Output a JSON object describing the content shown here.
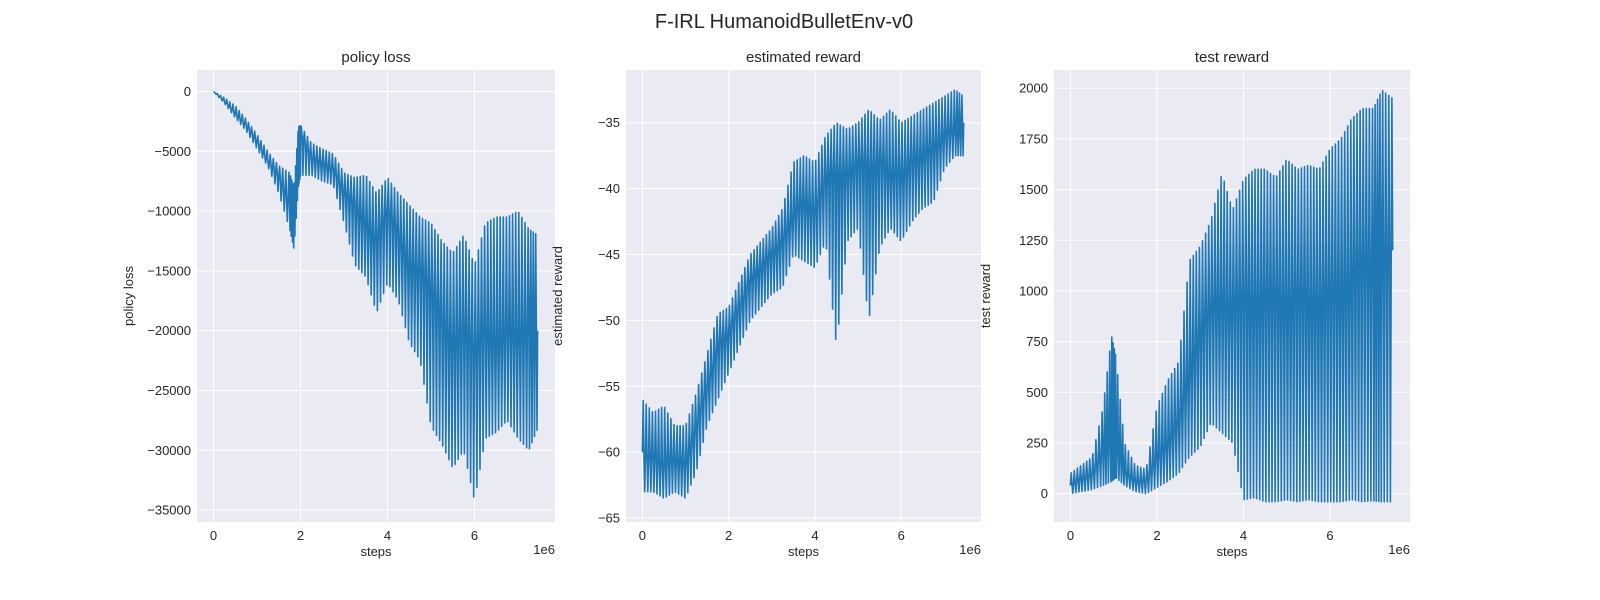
{
  "figure": {
    "suptitle": "F-IRL HumanoidBulletEnv-v0"
  },
  "style": {
    "line_color": "#1f77b4",
    "axes_bg": "#eaeaf2",
    "grid_color": "#ffffff",
    "text_color": "#262626"
  },
  "chart_data": [
    {
      "type": "line",
      "title": "policy loss",
      "xlabel": "steps",
      "ylabel": "policy loss",
      "x_offset_label": "1e6",
      "xlim": [
        -0.38,
        7.85
      ],
      "ylim": [
        -36000,
        1800
      ],
      "xticks": [
        0,
        2,
        4,
        6
      ],
      "xtick_labels": [
        "0",
        "2",
        "4",
        "6"
      ],
      "yticks": [
        0,
        -5000,
        -10000,
        -15000,
        -20000,
        -25000,
        -30000,
        -35000
      ],
      "ytick_labels": [
        "0",
        "−5000",
        "−10000",
        "−15000",
        "−20000",
        "−25000",
        "−30000",
        "−35000"
      ],
      "grid": true,
      "series": [
        {
          "x_scale": "1e6",
          "x": [
            0,
            0.25,
            0.5,
            0.75,
            1.0,
            1.25,
            1.5,
            1.75,
            1.85,
            1.95,
            2.0,
            2.25,
            2.5,
            2.75,
            3.0,
            3.25,
            3.5,
            3.75,
            4.0,
            4.25,
            4.5,
            4.75,
            5.0,
            5.25,
            5.5,
            5.75,
            6.0,
            6.25,
            6.5,
            6.75,
            7.0,
            7.25,
            7.45
          ],
          "y": [
            0,
            -800,
            -1800,
            -2800,
            -4200,
            -5800,
            -7000,
            -9500,
            -11000,
            -5000,
            -3500,
            -5500,
            -6000,
            -6500,
            -8500,
            -9500,
            -11000,
            -12500,
            -10000,
            -12000,
            -14500,
            -15000,
            -17000,
            -19000,
            -21000,
            -20000,
            -22000,
            -20000,
            -21000,
            -20000,
            -21000,
            -20000,
            -20000
          ],
          "y_high": [
            0,
            -500,
            -1200,
            -2300,
            -3600,
            -5000,
            -6200,
            -6800,
            -8000,
            -3000,
            -2800,
            -4300,
            -4800,
            -5200,
            -6800,
            -7200,
            -7000,
            -8500,
            -7200,
            -8500,
            -9500,
            -10500,
            -11000,
            -12500,
            -13500,
            -12000,
            -14500,
            -11000,
            -10500,
            -10500,
            -10000,
            -11500,
            -12000
          ],
          "y_low": [
            0,
            -1000,
            -2200,
            -3300,
            -4800,
            -6300,
            -8500,
            -11500,
            -13200,
            -8000,
            -7000,
            -7000,
            -7500,
            -7800,
            -11000,
            -14500,
            -15500,
            -18500,
            -16000,
            -17500,
            -21000,
            -22500,
            -28000,
            -29500,
            -31500,
            -30000,
            -34200,
            -29000,
            -28500,
            -27500,
            -29000,
            -30000,
            -28200
          ]
        }
      ]
    },
    {
      "type": "line",
      "title": "estimated reward",
      "xlabel": "steps",
      "ylabel": "estimated reward",
      "x_offset_label": "1e6",
      "xlim": [
        -0.38,
        7.85
      ],
      "ylim": [
        -65.3,
        -31.0
      ],
      "xticks": [
        0,
        2,
        4,
        6
      ],
      "xtick_labels": [
        "0",
        "2",
        "4",
        "6"
      ],
      "yticks": [
        -35,
        -40,
        -45,
        -50,
        -55,
        -60,
        -65
      ],
      "ytick_labels": [
        "−35",
        "−40",
        "−45",
        "−50",
        "−55",
        "−60",
        "−65"
      ],
      "grid": true,
      "series": [
        {
          "x_scale": "1e6",
          "x": [
            0,
            0.25,
            0.5,
            0.75,
            1.0,
            1.25,
            1.5,
            1.75,
            2.0,
            2.25,
            2.5,
            2.75,
            3.0,
            3.25,
            3.5,
            3.75,
            4.0,
            4.25,
            4.5,
            4.75,
            5.0,
            5.25,
            5.5,
            5.75,
            6.0,
            6.25,
            6.5,
            6.75,
            7.0,
            7.25,
            7.45
          ],
          "y": [
            -60,
            -60.5,
            -61,
            -60.5,
            -61,
            -58,
            -55,
            -52,
            -51,
            -49,
            -47,
            -46,
            -45,
            -44,
            -42,
            -41,
            -42,
            -39,
            -39,
            -39,
            -38,
            -38.5,
            -38,
            -39,
            -39,
            -38,
            -37.5,
            -37,
            -36,
            -35.5,
            -35
          ],
          "y_high": [
            -56,
            -57,
            -56.5,
            -58,
            -58,
            -55.5,
            -52.5,
            -49.5,
            -49,
            -47,
            -45,
            -44,
            -43,
            -41.5,
            -38,
            -37.5,
            -38,
            -36,
            -35,
            -35.5,
            -35,
            -34,
            -34.8,
            -34,
            -35,
            -34.5,
            -34,
            -33.5,
            -33,
            -32.5,
            -33
          ],
          "y_low": [
            -63,
            -63,
            -63.5,
            -63,
            -63.5,
            -61.5,
            -58,
            -56,
            -54,
            -52,
            -50,
            -49,
            -48,
            -47.5,
            -45,
            -45.5,
            -46,
            -44,
            -52,
            -44,
            -43,
            -50,
            -44.5,
            -43,
            -44,
            -42.5,
            -41.5,
            -41,
            -38.5,
            -37.5,
            -37.5
          ]
        }
      ]
    },
    {
      "type": "line",
      "title": "test reward",
      "xlabel": "steps",
      "ylabel": "test reward",
      "x_offset_label": "1e6",
      "xlim": [
        -0.38,
        7.85
      ],
      "ylim": [
        -140,
        2090
      ],
      "xticks": [
        0,
        2,
        4,
        6
      ],
      "xtick_labels": [
        "0",
        "2",
        "4",
        "6"
      ],
      "yticks": [
        0,
        250,
        500,
        750,
        1000,
        1250,
        1500,
        1750,
        2000
      ],
      "ytick_labels": [
        "0",
        "250",
        "500",
        "750",
        "1000",
        "1250",
        "1500",
        "1750",
        "2000"
      ],
      "grid": true,
      "series": [
        {
          "x_scale": "1e6",
          "x": [
            0,
            0.25,
            0.5,
            0.75,
            0.95,
            1.05,
            1.25,
            1.5,
            1.75,
            2.0,
            2.25,
            2.5,
            2.75,
            3.0,
            3.25,
            3.5,
            3.75,
            4.0,
            4.25,
            4.5,
            4.75,
            5.0,
            5.25,
            5.5,
            5.75,
            6.0,
            6.25,
            6.5,
            6.75,
            7.0,
            7.2,
            7.45
          ],
          "y": [
            40,
            70,
            100,
            200,
            350,
            300,
            100,
            60,
            60,
            180,
            250,
            350,
            600,
            800,
            900,
            950,
            900,
            950,
            950,
            950,
            950,
            950,
            950,
            950,
            950,
            950,
            1000,
            1050,
            1100,
            1150,
            1200,
            1200
          ],
          "y_high": [
            100,
            140,
            180,
            420,
            780,
            680,
            250,
            140,
            120,
            430,
            560,
            650,
            1150,
            1220,
            1350,
            1580,
            1400,
            1550,
            1600,
            1600,
            1560,
            1650,
            1600,
            1620,
            1600,
            1700,
            1750,
            1850,
            1900,
            1900,
            1990,
            1950
          ],
          "y_low": [
            0,
            10,
            20,
            40,
            60,
            80,
            40,
            10,
            0,
            30,
            60,
            100,
            180,
            230,
            350,
            300,
            250,
            -30,
            -20,
            -40,
            -40,
            -30,
            -40,
            -30,
            -40,
            -40,
            -40,
            -30,
            -40,
            -35,
            -40,
            -40
          ]
        }
      ]
    }
  ]
}
